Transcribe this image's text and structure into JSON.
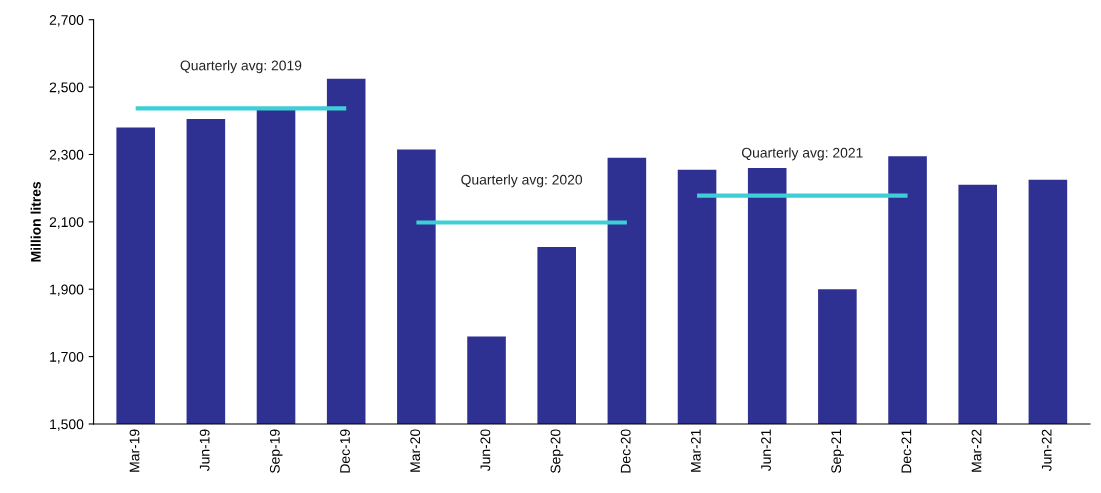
{
  "chart_data": {
    "type": "bar",
    "ylabel": "Million litres",
    "categories": [
      "Mar-19",
      "Jun-19",
      "Sep-19",
      "Dec-19",
      "Mar-20",
      "Jun-20",
      "Sep-20",
      "Dec-20",
      "Mar-21",
      "Jun-21",
      "Sep-21",
      "Dec-21",
      "Mar-22",
      "Jun-22"
    ],
    "series": [
      {
        "color": "#2e3192",
        "values": [
          2380,
          2405,
          2435,
          2525,
          2315,
          1760,
          2025,
          2290,
          2255,
          2260,
          1900,
          2295,
          2210,
          2225
        ]
      },
      {
        "type": "line",
        "color": "#3ecfd6",
        "x": [
          "Mar-19",
          "Dec-19"
        ],
        "values": [
          2437,
          2437
        ]
      },
      {
        "type": "line",
        "color": "#3ecfd6",
        "x": [
          "Mar-20",
          "Dec-20"
        ],
        "values": [
          2098,
          2098
        ]
      },
      {
        "type": "line",
        "color": "#3ecfd6",
        "x": [
          "Mar-21",
          "Dec-21"
        ],
        "values": [
          2178,
          2178
        ]
      }
    ],
    "annotations": [
      "Quarterly avg: 2019",
      "Quarterly avg: 2020",
      "Quarterly avg: 2021"
    ],
    "ylim": [
      1500,
      2700
    ],
    "yticks": [
      {
        "value": 1500,
        "label": "1,500"
      },
      {
        "value": 1700,
        "label": "1,700"
      },
      {
        "value": 1900,
        "label": "1,900"
      },
      {
        "value": 2100,
        "label": "2,100"
      },
      {
        "value": 2300,
        "label": "2,300"
      },
      {
        "value": 2500,
        "label": "2,500"
      },
      {
        "value": 2700,
        "label": "2,700"
      }
    ],
    "grid": false,
    "legend": false
  }
}
